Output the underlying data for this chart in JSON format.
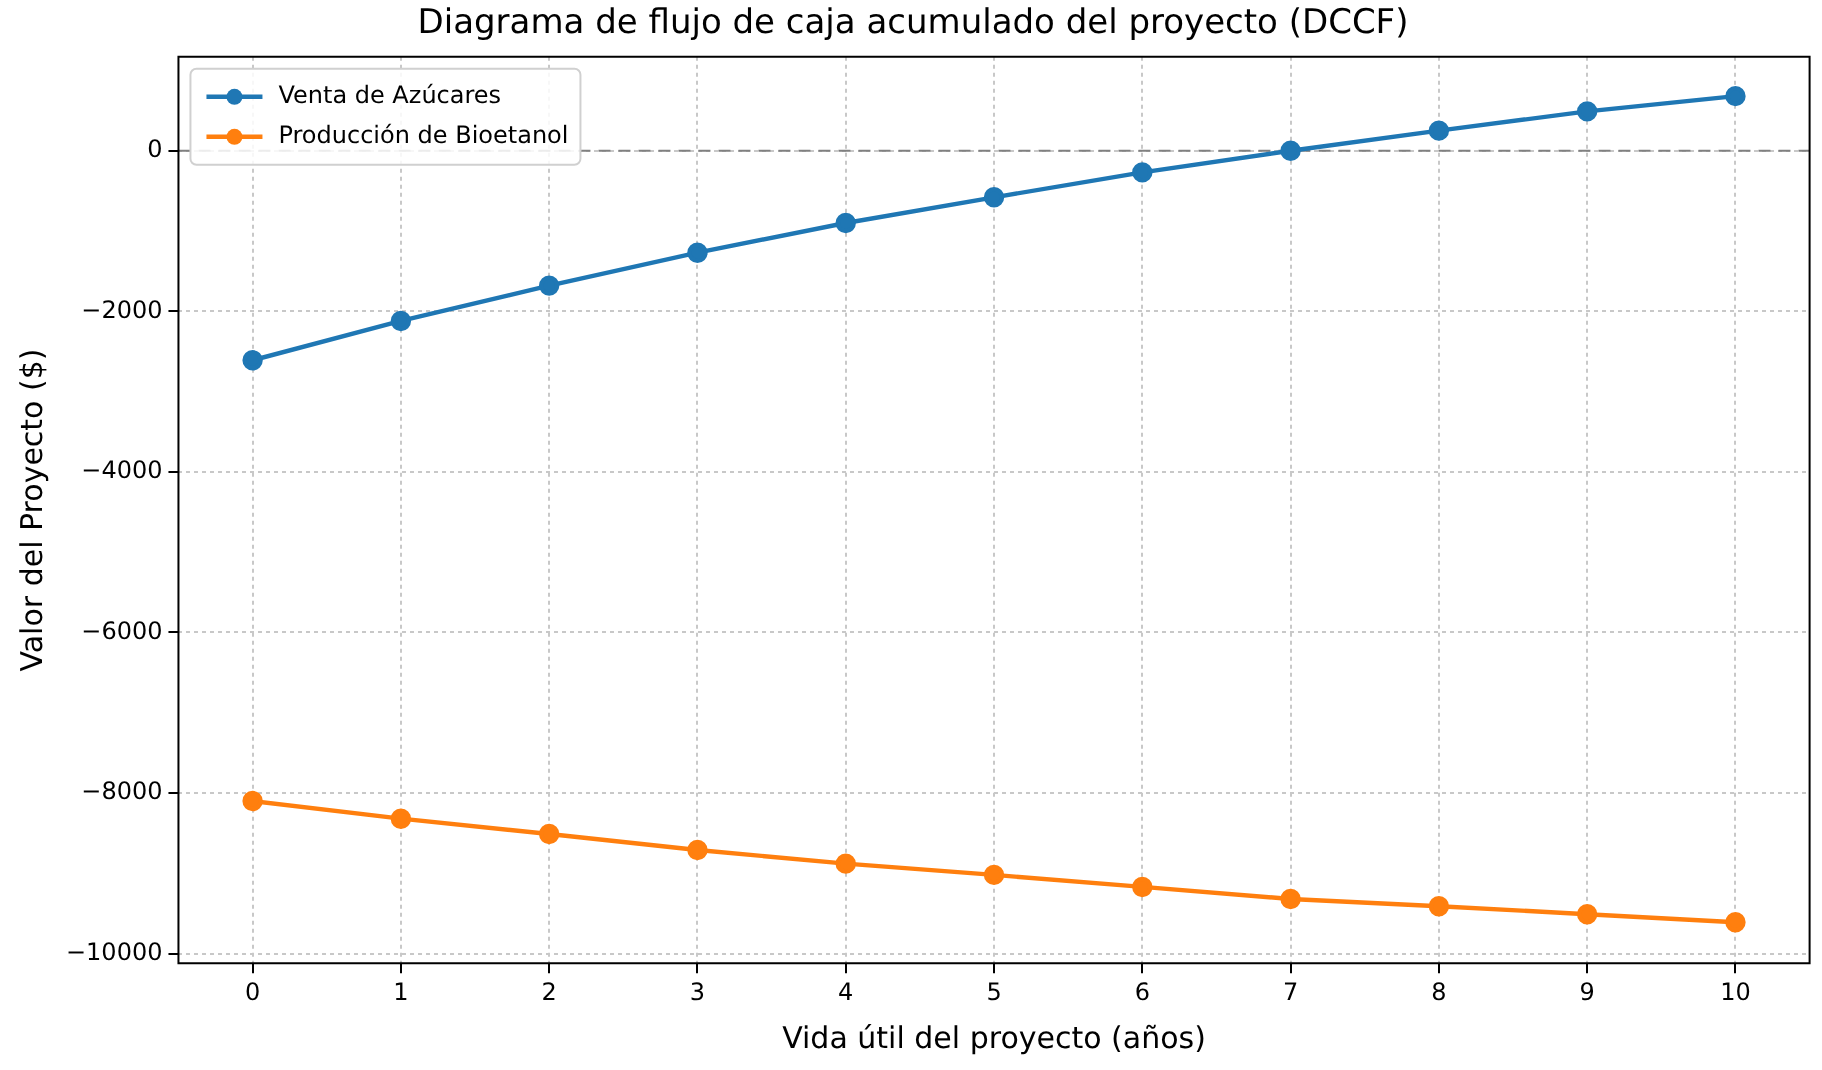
{
  "chart_data": {
    "type": "line",
    "title": "Diagrama de flujo de caja acumulado del proyecto (DCCF)",
    "xlabel": "Vida útil del proyecto (años)",
    "ylabel": "Valor del Proyecto ($)",
    "x": [
      0,
      1,
      2,
      3,
      4,
      5,
      6,
      7,
      8,
      9,
      10
    ],
    "series": [
      {
        "name": "Venta de Azúcares",
        "color": "#1f77b4",
        "values": [
          -2610,
          -2120,
          -1680,
          -1270,
          -900,
          -580,
          -270,
          0,
          250,
          490,
          680
        ]
      },
      {
        "name": "Producción de Bioetanol",
        "color": "#ff7f0e",
        "values": [
          -8100,
          -8320,
          -8510,
          -8710,
          -8880,
          -9020,
          -9170,
          -9320,
          -9410,
          -9510,
          -9610
        ]
      }
    ],
    "xlim": [
      -0.5,
      10.5
    ],
    "xticks": [
      0,
      1,
      2,
      3,
      4,
      5,
      6,
      7,
      8,
      9,
      10
    ],
    "ylim": [
      -10120,
      1170
    ],
    "yticks": [
      {
        "value": -10000,
        "label": "−10000"
      },
      {
        "value": -8000,
        "label": "−8000"
      },
      {
        "value": -6000,
        "label": "−6000"
      },
      {
        "value": -4000,
        "label": "−4000"
      },
      {
        "value": -2000,
        "label": "−2000"
      },
      0
    ],
    "ref_lines": [
      {
        "axis": "y",
        "value": 0,
        "color": "#808080",
        "line_style": "dashed"
      }
    ],
    "grid": true,
    "legend": "top left",
    "marker": "circle",
    "line_style": "solid"
  }
}
